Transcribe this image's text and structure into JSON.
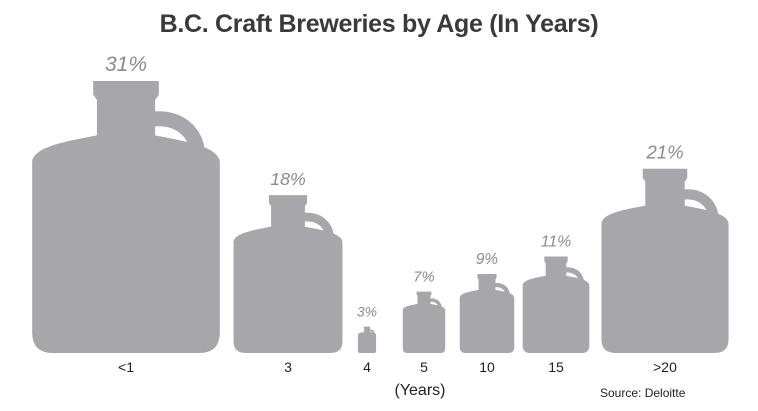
{
  "chart_data": {
    "type": "bar",
    "title": "B.C. Craft Breweries by Age (In Years)",
    "xlabel": "(Years)",
    "ylabel": "",
    "categories": [
      "<1",
      "3",
      "4",
      "5",
      "10",
      "15",
      ">20"
    ],
    "values": [
      31,
      18,
      3,
      7,
      9,
      11,
      21
    ],
    "value_labels": [
      "31%",
      "18%",
      "3%",
      "7%",
      "9%",
      "11%",
      "21%"
    ],
    "unit": "%",
    "mark_shape": "growler-jug",
    "mark_color": "#a7a7ab",
    "label_color": "#8a8a8a",
    "grid": false,
    "legend": "none",
    "source": "Source: Deloitte"
  }
}
